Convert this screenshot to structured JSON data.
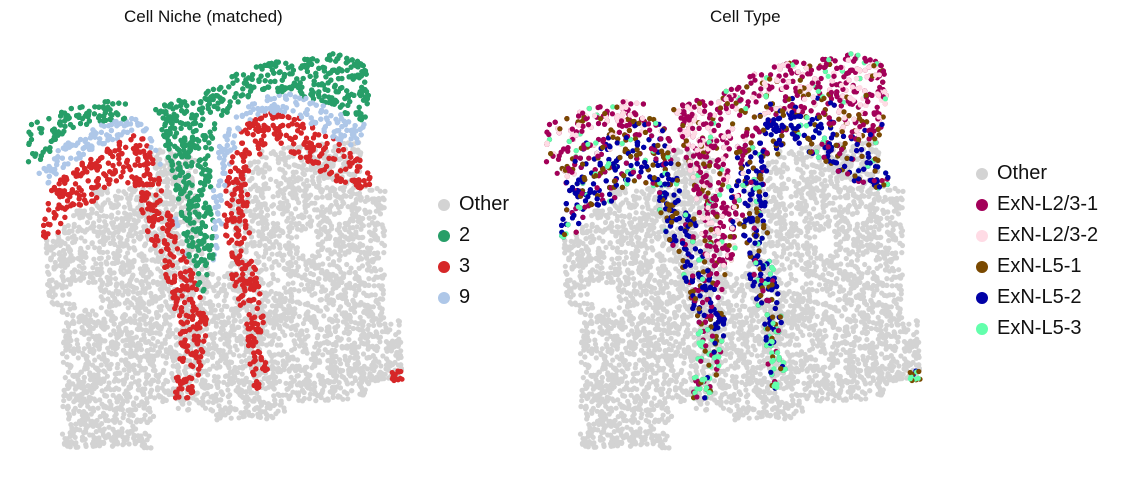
{
  "chart_data": [
    {
      "type": "scatter",
      "title": "Cell Niche (matched)",
      "legend_position": "right",
      "grid": false,
      "axes": "hidden",
      "categories": [
        {
          "name": "Other",
          "color": "#d3d3d3"
        },
        {
          "name": "2",
          "color": "#279e68"
        },
        {
          "name": "3",
          "color": "#d62728"
        },
        {
          "name": "9",
          "color": "#aec7e8"
        }
      ]
    },
    {
      "type": "scatter",
      "title": "Cell Type",
      "legend_position": "right",
      "grid": false,
      "axes": "hidden",
      "categories": [
        {
          "name": "Other",
          "color": "#d3d3d3"
        },
        {
          "name": "ExN-L2/3-1",
          "color": "#a30059"
        },
        {
          "name": "ExN-L2/3-2",
          "color": "#ffdbe5"
        },
        {
          "name": "ExN-L5-1",
          "color": "#7a4900"
        },
        {
          "name": "ExN-L5-2",
          "color": "#0000a6"
        },
        {
          "name": "ExN-L5-3",
          "color": "#63ffac"
        }
      ]
    }
  ]
}
